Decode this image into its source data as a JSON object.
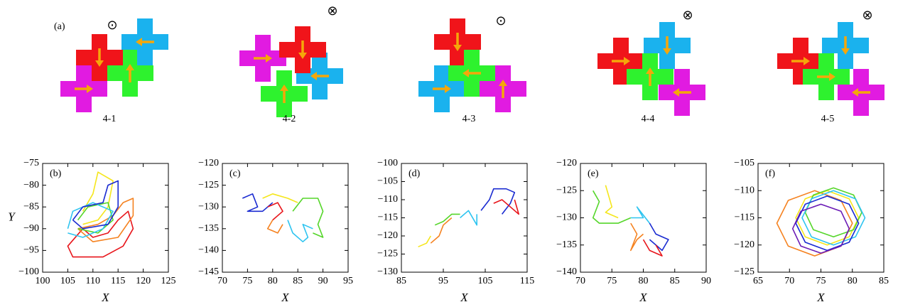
{
  "figure": {
    "panel_label": "(a)",
    "diagrams": [
      {
        "label": "4-1",
        "field": "⊙"
      },
      {
        "label": "4-2",
        "field": "⊗"
      },
      {
        "label": "4-3",
        "field": "⊙"
      },
      {
        "label": "4-4",
        "field": "⊗"
      },
      {
        "label": "4-5",
        "field": "⊗"
      }
    ]
  },
  "chart_data": [
    {
      "type": "line",
      "panel_label": "(b)",
      "xlabel": "X",
      "ylabel": "Y",
      "xlim": [
        100,
        125
      ],
      "ylim": [
        -100,
        -75
      ],
      "xticks": [
        100,
        105,
        110,
        115,
        120,
        125
      ],
      "yticks": [
        {
          "value": -100,
          "label": "−100"
        },
        {
          "value": -95,
          "label": "−95"
        },
        {
          "value": -90,
          "label": "−90"
        },
        {
          "value": -85,
          "label": "−85"
        },
        {
          "value": -80,
          "label": "−80"
        },
        {
          "value": -75,
          "label": "−75"
        }
      ],
      "series": [
        {
          "color": "#e8151b",
          "x": [
            108,
            105,
            106,
            112,
            116,
            118,
            117,
            115,
            113,
            110,
            108
          ],
          "y": [
            -90,
            -94,
            -96.5,
            -96.5,
            -94,
            -90,
            -86,
            -88,
            -91,
            -92,
            -90
          ]
        },
        {
          "color": "#f58220",
          "x": [
            107,
            110,
            115,
            118,
            118,
            116,
            114,
            111,
            107
          ],
          "y": [
            -90,
            -93,
            -92,
            -87,
            -83,
            -84,
            -87,
            -89,
            -90
          ]
        },
        {
          "color": "#f5e61c",
          "x": [
            108,
            110,
            111,
            114,
            113,
            111,
            108
          ],
          "y": [
            -86,
            -82,
            -77,
            -79,
            -85,
            -88,
            -89
          ]
        },
        {
          "color": "#55d62a",
          "x": [
            107,
            109,
            113,
            114,
            111,
            107
          ],
          "y": [
            -88,
            -85,
            -84,
            -88,
            -91,
            -90
          ]
        },
        {
          "color": "#2ec4f0",
          "x": [
            105,
            106,
            110,
            114,
            112,
            108,
            105
          ],
          "y": [
            -90,
            -86,
            -84,
            -86,
            -90,
            -92,
            -91
          ]
        },
        {
          "color": "#1a2bd1",
          "x": [
            106,
            108,
            112,
            113,
            115,
            115,
            113,
            108,
            106
          ],
          "y": [
            -88,
            -85,
            -84,
            -80,
            -79,
            -85,
            -89,
            -90,
            -88
          ]
        }
      ]
    },
    {
      "type": "line",
      "panel_label": "(c)",
      "xlabel": "X",
      "xlim": [
        70,
        95
      ],
      "ylim": [
        -145,
        -120
      ],
      "xticks": [
        70,
        75,
        80,
        85,
        90,
        95
      ],
      "yticks": [
        {
          "value": -145,
          "label": "−145"
        },
        {
          "value": -140,
          "label": "−140"
        },
        {
          "value": -135,
          "label": "−135"
        },
        {
          "value": -130,
          "label": "−130"
        },
        {
          "value": -125,
          "label": "−125"
        },
        {
          "value": -120,
          "label": "−120"
        }
      ],
      "series": [
        {
          "color": "#1a2bd1",
          "x": [
            74,
            76,
            77,
            75,
            78,
            80
          ],
          "y": [
            -128,
            -127,
            -130,
            -131,
            -131,
            -129
          ]
        },
        {
          "color": "#e8151b",
          "x": [
            79,
            81,
            82,
            80
          ],
          "y": [
            -130,
            -129,
            -131,
            -133
          ]
        },
        {
          "color": "#f58220",
          "x": [
            80,
            79,
            81,
            82
          ],
          "y": [
            -133,
            -135,
            -136,
            -134
          ]
        },
        {
          "color": "#f5e61c",
          "x": [
            78,
            80,
            83,
            85
          ],
          "y": [
            -128,
            -127,
            -128,
            -129
          ]
        },
        {
          "color": "#55d62a",
          "x": [
            84,
            86,
            89,
            90,
            89,
            90,
            88
          ],
          "y": [
            -131,
            -128,
            -128,
            -131,
            -134,
            -137,
            -136
          ]
        },
        {
          "color": "#2ec4f0",
          "x": [
            83,
            84,
            86,
            87,
            86,
            88
          ],
          "y": [
            -133,
            -136,
            -138,
            -137,
            -134,
            -135
          ]
        }
      ]
    },
    {
      "type": "line",
      "panel_label": "(d)",
      "xlabel": "X",
      "xlim": [
        85,
        115
      ],
      "ylim": [
        -130,
        -100
      ],
      "xticks": [
        85,
        95,
        105,
        115
      ],
      "yticks": [
        {
          "value": -130,
          "label": "−130"
        },
        {
          "value": -125,
          "label": "−125"
        },
        {
          "value": -120,
          "label": "−120"
        },
        {
          "value": -115,
          "label": "−115"
        },
        {
          "value": -110,
          "label": "−110"
        },
        {
          "value": -105,
          "label": "−105"
        },
        {
          "value": -100,
          "label": "−100"
        }
      ],
      "series": [
        {
          "color": "#f5e61c",
          "x": [
            89,
            91,
            92
          ],
          "y": [
            -123,
            -122,
            -120
          ]
        },
        {
          "color": "#f58220",
          "x": [
            92,
            94,
            95,
            97
          ],
          "y": [
            -122,
            -120,
            -117,
            -115
          ]
        },
        {
          "color": "#55d62a",
          "x": [
            93,
            95,
            97,
            99
          ],
          "y": [
            -117,
            -116,
            -114,
            -114
          ]
        },
        {
          "color": "#2ec4f0",
          "x": [
            99,
            101,
            103,
            103
          ],
          "y": [
            -115,
            -113,
            -117,
            -114
          ]
        },
        {
          "color": "#1a2bd1",
          "x": [
            104,
            106,
            107,
            110,
            112,
            111,
            109
          ],
          "y": [
            -113,
            -110,
            -107,
            -107,
            -108,
            -111,
            -114
          ]
        },
        {
          "color": "#e8151b",
          "x": [
            107,
            109,
            111,
            113,
            112
          ],
          "y": [
            -111,
            -110,
            -112,
            -114,
            -110
          ]
        }
      ]
    },
    {
      "type": "line",
      "panel_label": "(e)",
      "xlabel": "X",
      "xlim": [
        70,
        90
      ],
      "ylim": [
        -140,
        -120
      ],
      "xticks": [
        70,
        75,
        80,
        85,
        90
      ],
      "yticks": [
        {
          "value": -140,
          "label": "−140"
        },
        {
          "value": -135,
          "label": "−135"
        },
        {
          "value": -130,
          "label": "−130"
        },
        {
          "value": -125,
          "label": "−125"
        },
        {
          "value": -120,
          "label": "−120"
        }
      ],
      "series": [
        {
          "color": "#f5e61c",
          "x": [
            74,
            75,
            74,
            76
          ],
          "y": [
            -124,
            -128,
            -129,
            -130
          ]
        },
        {
          "color": "#55d62a",
          "x": [
            72,
            73,
            72,
            73,
            76,
            78
          ],
          "y": [
            -125,
            -127,
            -130,
            -131,
            -131,
            -130
          ]
        },
        {
          "color": "#2ec4f0",
          "x": [
            78,
            80,
            79,
            81
          ],
          "y": [
            -130,
            -130,
            -128,
            -131
          ]
        },
        {
          "color": "#f58220",
          "x": [
            78,
            79,
            78,
            79,
            80
          ],
          "y": [
            -131,
            -133,
            -136,
            -134,
            -133
          ]
        },
        {
          "color": "#1a2bd1",
          "x": [
            81,
            82,
            84,
            83,
            81
          ],
          "y": [
            -131,
            -133,
            -134,
            -136,
            -134
          ]
        },
        {
          "color": "#e8151b",
          "x": [
            80,
            81,
            83,
            82
          ],
          "y": [
            -134,
            -136,
            -137,
            -135
          ]
        }
      ]
    },
    {
      "type": "line",
      "panel_label": "(f)",
      "xlabel": "X",
      "closed": true,
      "xlim": [
        65,
        85
      ],
      "ylim": [
        -125,
        -105
      ],
      "xticks": [
        65,
        70,
        75,
        80,
        85
      ],
      "yticks": [
        {
          "value": -125,
          "label": "−125"
        },
        {
          "value": -120,
          "label": "−120"
        },
        {
          "value": -115,
          "label": "−115"
        },
        {
          "value": -110,
          "label": "−110"
        },
        {
          "value": -105,
          "label": "−105"
        }
      ],
      "series": [
        {
          "color": "#f58220",
          "x": [
            80,
            78.2,
            74,
            69.8,
            68,
            69.8,
            74,
            78.2
          ],
          "y": [
            -116,
            -111.8,
            -110,
            -111.8,
            -116,
            -120.2,
            -122,
            -120.2
          ]
        },
        {
          "color": "#f5e61c",
          "x": [
            81,
            79.5,
            76,
            72.5,
            71,
            72.5,
            76,
            79.5
          ],
          "y": [
            -115,
            -111.5,
            -110,
            -111.5,
            -115,
            -118.5,
            -120,
            -118.5
          ]
        },
        {
          "color": "#55d62a",
          "x": [
            81.5,
            80.2,
            77,
            73.8,
            72.5,
            73.8,
            77,
            80.2
          ],
          "y": [
            -114,
            -110.8,
            -109.5,
            -110.8,
            -114,
            -117.2,
            -118.5,
            -117.2
          ]
        },
        {
          "color": "#2ec4f0",
          "x": [
            82,
            80.5,
            77,
            73.5,
            72,
            73.5,
            77,
            80.5
          ],
          "y": [
            -115,
            -111.5,
            -110,
            -111.5,
            -115,
            -118.5,
            -120,
            -118.5
          ]
        },
        {
          "color": "#1a2bd1",
          "x": [
            81,
            79.5,
            76,
            72.5,
            71,
            72.5,
            76,
            79.5
          ],
          "y": [
            -116,
            -112.5,
            -111,
            -112.5,
            -116,
            -119.5,
            -121,
            -119.5
          ]
        },
        {
          "color": "#6a1ab5",
          "x": [
            79.5,
            78.2,
            75,
            71.8,
            70.5,
            71.8,
            75,
            78.2
          ],
          "y": [
            -117,
            -113.8,
            -112.5,
            -113.8,
            -117,
            -120.2,
            -121.5,
            -120.2
          ]
        }
      ]
    }
  ]
}
